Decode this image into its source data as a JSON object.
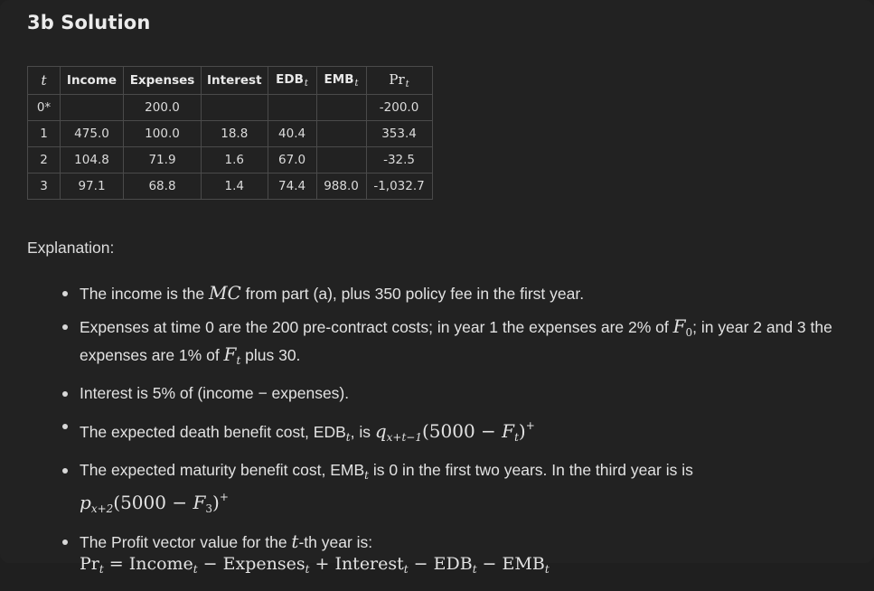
{
  "heading": "3b Solution",
  "table": {
    "headers": {
      "t": "t",
      "income": "Income",
      "expenses": "Expenses",
      "interest": "Interest",
      "edb": "EDB",
      "emb": "EMB",
      "pr": "Pr",
      "sub": "t"
    },
    "rows": [
      {
        "t": "0*",
        "income": "",
        "expenses": "200.0",
        "interest": "",
        "edb": "",
        "emb": "",
        "pr": "-200.0"
      },
      {
        "t": "1",
        "income": "475.0",
        "expenses": "100.0",
        "interest": "18.8",
        "edb": "40.4",
        "emb": "",
        "pr": "353.4"
      },
      {
        "t": "2",
        "income": "104.8",
        "expenses": "71.9",
        "interest": "1.6",
        "edb": "67.0",
        "emb": "",
        "pr": "-32.5"
      },
      {
        "t": "3",
        "income": "97.1",
        "expenses": "68.8",
        "interest": "1.4",
        "edb": "74.4",
        "emb": "988.0",
        "pr": "-1,032.7"
      }
    ]
  },
  "explanation_label": "Explanation:",
  "bullets": {
    "b1": {
      "pre": "The income is the ",
      "math": "MC",
      "post": " from part (a), plus 350 policy fee in the first year."
    },
    "b2": {
      "pre": "Expenses at time 0 are the 200 pre-contract costs; in year 1 the expenses are 2% of ",
      "m1": "F",
      "m1sub": "0",
      "mid": "; in year 2 and 3 the expenses are 1% of ",
      "m2": "F",
      "m2sub": "t",
      "post": " plus 30."
    },
    "b3": {
      "text": "Interest is 5% of (income − expenses)."
    },
    "b4": {
      "pre": "The expected death benefit cost, EDB",
      "sub": "t",
      "mid": ", is ",
      "q": "q",
      "qsub": "x+t−1",
      "expr": "(5000 − ",
      "f": "F",
      "fsub": "t",
      "close": ")",
      "plus": "+"
    },
    "b5": {
      "pre": "The expected maturity benefit cost, EMB",
      "sub": "t",
      "post": " is 0 in the first two years. In the third year is is",
      "p": "p",
      "psub": "x+2",
      "expr": "(5000 − ",
      "f": "F",
      "fsub": "3",
      "close": ")",
      "plus": "+"
    },
    "b6": {
      "pre": "The Profit vector value for the ",
      "t": "t",
      "post": "-th year is:",
      "formula": {
        "pr": "Pr",
        "eq": " = ",
        "income": "Income",
        "minus1": " − ",
        "expenses": "Expenses",
        "plus1": " + ",
        "interest": "Interest",
        "minus2": " − ",
        "edb": "EDB",
        "minus3": " − ",
        "emb": "EMB",
        "sub": "t"
      }
    }
  }
}
